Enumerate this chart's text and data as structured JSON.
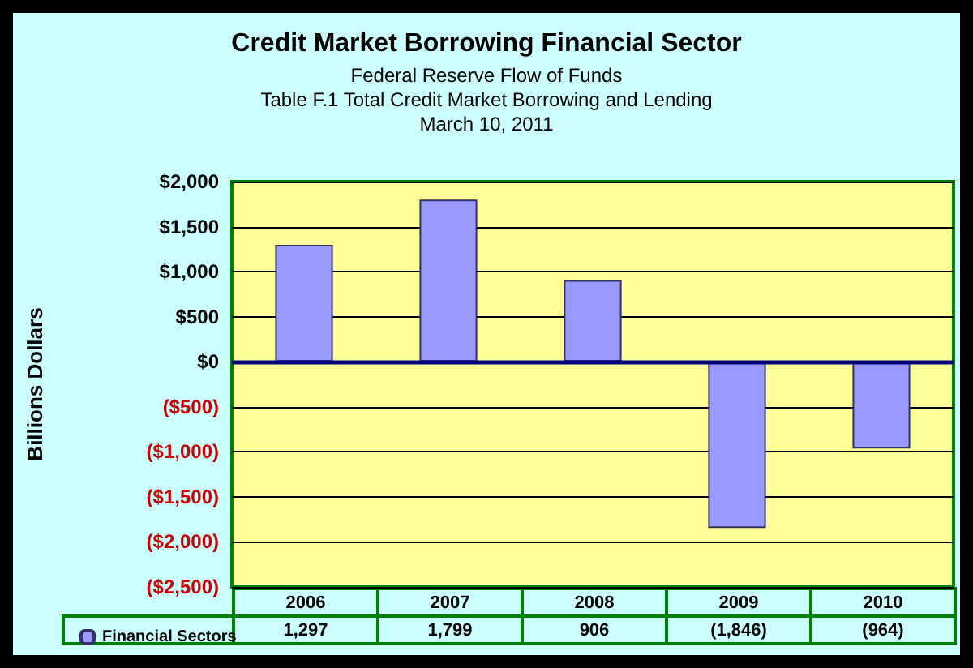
{
  "chart_data": {
    "type": "bar",
    "title": "Credit Market Borrowing Financial Sector",
    "subtitle": "Federal Reserve Flow of Funds\nTable F.1 Total Credit Market Borrowing and Lending\nMarch 10, 2011",
    "ylabel": "Billions Dollars",
    "categories": [
      "2006",
      "2007",
      "2008",
      "2009",
      "2010"
    ],
    "series": [
      {
        "name": "Financial Sectors",
        "color": "#9999ff",
        "values": [
          1297,
          1799,
          906,
          -1846,
          -964
        ],
        "value_labels": [
          "1,297",
          "1,799",
          "906",
          "(1,846)",
          "(964)"
        ]
      }
    ],
    "ylim": [
      -2500,
      2000
    ],
    "yticks": [
      {
        "value": 2000,
        "label": "$2,000"
      },
      {
        "value": 1500,
        "label": "$1,500"
      },
      {
        "value": 1000,
        "label": "$1,000"
      },
      {
        "value": 500,
        "label": "$500"
      },
      {
        "value": 0,
        "label": "$0"
      },
      {
        "value": -500,
        "label": "($500)"
      },
      {
        "value": -1000,
        "label": "($1,000)"
      },
      {
        "value": -1500,
        "label": "($1,500)"
      },
      {
        "value": -2000,
        "label": "($2,000)"
      },
      {
        "value": -2500,
        "label": "($2,500)"
      }
    ],
    "ref_lines": [
      {
        "axis": "y",
        "value": 0,
        "color": "#000080"
      }
    ],
    "grid": "y",
    "legend": "bottom left"
  }
}
